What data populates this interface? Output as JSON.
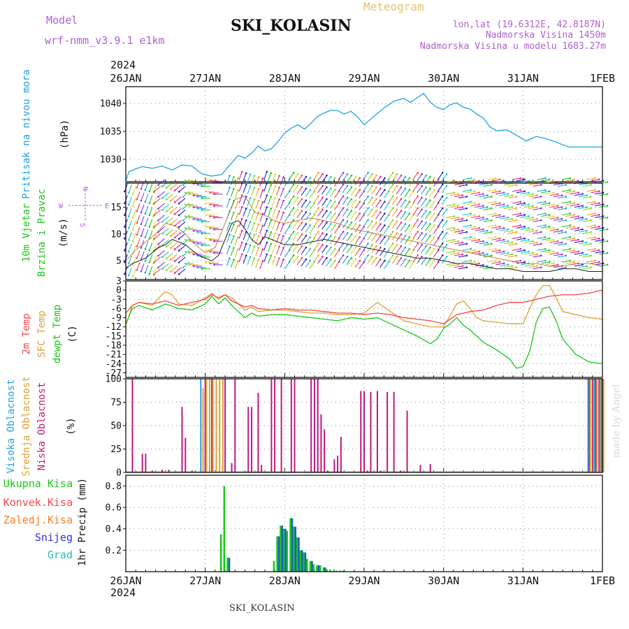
{
  "header": {
    "model_label": "Model",
    "model_name": "wrf-nmm_v3.9.1 e1km",
    "title": "SKI_KOLASIN",
    "product": "Meteogram",
    "coords": "lon,lat (19.6312E, 42.8187N)",
    "elevation": "Nadmorska Visina 1450m",
    "model_elevation": "Nadmorska Visina u modelu 1683.27m",
    "year_top": "2024",
    "year_bottom": "2024",
    "footer_title": "SKI_KOLASIN",
    "credit": "made by Angel"
  },
  "time_axis": {
    "labels": [
      "26JAN",
      "27JAN",
      "28JAN",
      "29JAN",
      "30JAN",
      "31JAN",
      "1FEB"
    ],
    "range_hours": [
      0,
      144
    ]
  },
  "colors": {
    "pressure": "#1ca3e0",
    "temp2m": "#f04848",
    "sfc": "#e0a030",
    "dewpoint": "#18c818",
    "high_cloud": "#20a0e0",
    "mid_cloud": "#e0a030",
    "low_cloud": "#c01880",
    "total_precip": "#18c818",
    "convective": "#f04848",
    "freezing": "#f08030",
    "snow": "#3030e0",
    "graupel": "#20c0c0",
    "wind_speed": "#202020",
    "wind_gust": "#c08040"
  },
  "chart_data": [
    {
      "type": "line",
      "panel": "pressure",
      "ylabel": [
        "Pritisak na nivou mora",
        "(hPa)"
      ],
      "yticks": [
        1030,
        1035,
        1040
      ],
      "ylim": [
        1026,
        1043
      ],
      "series": [
        {
          "x": [
            0,
            1,
            3,
            5,
            8,
            11,
            14,
            17,
            20,
            23,
            26,
            29,
            32,
            34,
            36,
            38,
            40,
            42,
            44,
            46,
            48,
            50,
            52,
            54,
            56,
            58,
            60,
            62,
            64,
            66,
            68,
            70,
            72,
            75,
            78,
            81,
            84,
            86,
            88,
            90,
            92,
            94,
            96,
            98,
            100,
            102,
            104,
            106,
            108,
            110,
            112,
            115,
            118,
            121,
            124,
            127,
            130,
            132,
            134,
            136,
            138,
            140,
            142,
            144
          ],
          "values": [
            1026.2,
            1027.8,
            1028.3,
            1028.7,
            1028.4,
            1028.8,
            1028.1,
            1029.0,
            1028.8,
            1027.4,
            1027.0,
            1027.3,
            1029.4,
            1030.7,
            1030.2,
            1031.1,
            1032.4,
            1031.5,
            1031.9,
            1033.2,
            1034.7,
            1035.6,
            1036.2,
            1035.4,
            1036.5,
            1037.7,
            1038.3,
            1038.8,
            1038.7,
            1038.1,
            1038.6,
            1037.6,
            1036.2,
            1037.7,
            1039.2,
            1040.4,
            1040.9,
            1040.2,
            1041.0,
            1041.8,
            1040.2,
            1039.3,
            1038.9,
            1039.8,
            1040.1,
            1039.3,
            1039.0,
            1038.1,
            1037.4,
            1035.8,
            1035.1,
            1035.3,
            1034.3,
            1033.3,
            1034.1,
            1033.7,
            1033.1,
            1032.6,
            1032.2,
            1032.2,
            1032.2,
            1032.2,
            1032.2,
            1032.2
          ]
        }
      ]
    },
    {
      "type": "line",
      "panel": "wind",
      "ylabel": [
        "10m Vjetar",
        "Brzina i Pravac",
        "(m/s)"
      ],
      "compass": [
        "N",
        "S",
        "W",
        "E"
      ],
      "yticks": [
        5,
        10,
        15
      ],
      "ylim": [
        1.5,
        19.5
      ],
      "series": [
        {
          "name": "speed",
          "x": [
            0,
            2,
            4,
            6,
            8,
            10,
            12,
            14,
            16,
            18,
            20,
            22,
            24,
            26,
            28,
            30,
            32,
            34,
            36,
            38,
            40,
            42,
            44,
            46,
            48,
            52,
            56,
            60,
            64,
            68,
            72,
            76,
            80,
            84,
            88,
            92,
            96,
            100,
            104,
            108,
            112,
            116,
            120,
            124,
            128,
            132,
            136,
            140,
            144
          ],
          "values": [
            3.5,
            4.5,
            5.0,
            5.5,
            6.5,
            7.5,
            8.0,
            9.0,
            8.5,
            8.0,
            7.0,
            6.0,
            5.5,
            5.0,
            6.0,
            9.0,
            12.0,
            12.5,
            11.0,
            9.0,
            8.0,
            9.5,
            9.0,
            8.5,
            8.0,
            8.0,
            8.5,
            9.0,
            8.5,
            8.0,
            7.5,
            7.0,
            6.5,
            6.0,
            5.5,
            5.5,
            5.0,
            4.5,
            4.5,
            4.0,
            3.5,
            3.5,
            3.0,
            3.0,
            3.0,
            3.5,
            3.5,
            3.0,
            3.0
          ]
        },
        {
          "name": "gust",
          "x": [
            0,
            3,
            6,
            9,
            12,
            15,
            18,
            21,
            24,
            27,
            30,
            33,
            36,
            39,
            42,
            45,
            48,
            52,
            56,
            60,
            64,
            68,
            72,
            76,
            80,
            84,
            88,
            92,
            96,
            100,
            104,
            108,
            112,
            116,
            120,
            124,
            128,
            132,
            136,
            140,
            144
          ],
          "values": [
            5.0,
            7.0,
            8.5,
            10.0,
            12.0,
            11.5,
            10.0,
            8.0,
            6.5,
            7.5,
            12.0,
            16.5,
            17.0,
            14.0,
            13.5,
            12.5,
            12.0,
            12.5,
            13.0,
            12.5,
            12.0,
            11.0,
            10.5,
            10.0,
            9.5,
            9.0,
            8.5,
            8.0,
            7.5,
            7.0,
            6.5,
            6.0,
            5.5,
            5.0,
            4.5,
            4.5,
            4.0,
            4.0,
            4.5,
            4.5,
            4.0
          ]
        }
      ]
    },
    {
      "type": "line",
      "panel": "temperature",
      "ylabel": [
        "2m Temp",
        "SFC Temp",
        "dewpt Temp",
        "(C)"
      ],
      "yticks": [
        3,
        0,
        -3,
        -6,
        -9,
        -12,
        -15,
        -18,
        -21,
        -24,
        -27
      ],
      "ylim": [
        -28.5,
        3
      ],
      "series": [
        {
          "name": "2m Temp",
          "x": [
            0,
            2,
            4,
            8,
            12,
            16,
            20,
            24,
            26,
            28,
            30,
            32,
            34,
            36,
            38,
            40,
            44,
            48,
            52,
            56,
            60,
            64,
            68,
            72,
            76,
            80,
            84,
            88,
            92,
            96,
            100,
            104,
            108,
            112,
            116,
            120,
            124,
            128,
            132,
            136,
            140,
            144
          ],
          "values": [
            -7.5,
            -5.0,
            -4.0,
            -4.5,
            -3.5,
            -5.0,
            -4.0,
            -3.0,
            -1.5,
            -2.5,
            -1.5,
            -3.5,
            -4.5,
            -5.5,
            -5.0,
            -6.0,
            -6.5,
            -6.0,
            -6.5,
            -6.5,
            -7.0,
            -7.5,
            -7.5,
            -8.0,
            -7.5,
            -8.0,
            -9.0,
            -9.5,
            -10.0,
            -11.0,
            -8.0,
            -7.0,
            -6.5,
            -5.0,
            -4.0,
            -4.0,
            -3.0,
            -2.0,
            -1.5,
            -1.5,
            -1.0,
            0.0
          ]
        },
        {
          "name": "SFC Temp",
          "x": [
            0,
            2,
            4,
            8,
            10,
            12,
            14,
            16,
            20,
            24,
            26,
            28,
            30,
            32,
            34,
            36,
            38,
            40,
            44,
            48,
            52,
            56,
            60,
            64,
            68,
            72,
            76,
            80,
            84,
            88,
            92,
            96,
            100,
            102,
            104,
            106,
            108,
            112,
            116,
            120,
            122,
            124,
            126,
            128,
            130,
            132,
            136,
            140,
            144
          ],
          "values": [
            -11.5,
            -5.0,
            -4.0,
            -5.0,
            -2.5,
            -0.5,
            -1.5,
            -4.5,
            -5.0,
            -2.5,
            -1.0,
            -3.0,
            -1.5,
            -2.5,
            -4.5,
            -6.5,
            -5.5,
            -7.0,
            -6.5,
            -6.5,
            -7.0,
            -7.5,
            -7.5,
            -8.0,
            -8.0,
            -7.5,
            -4.0,
            -7.0,
            -10.0,
            -11.0,
            -12.0,
            -12.0,
            -4.5,
            -3.5,
            -6.0,
            -9.0,
            -10.0,
            -10.5,
            -11.0,
            -11.0,
            -6.0,
            -1.5,
            1.5,
            1.5,
            -2.5,
            -7.0,
            -8.0,
            -9.0,
            -9.5
          ]
        },
        {
          "name": "dewpt Temp",
          "x": [
            0,
            2,
            4,
            8,
            12,
            16,
            20,
            24,
            26,
            28,
            30,
            32,
            34,
            36,
            38,
            40,
            44,
            48,
            52,
            56,
            60,
            64,
            68,
            72,
            76,
            80,
            84,
            88,
            92,
            94,
            96,
            98,
            100,
            102,
            104,
            106,
            108,
            112,
            116,
            118,
            120,
            122,
            124,
            126,
            128,
            130,
            132,
            136,
            140,
            144
          ],
          "values": [
            -11.0,
            -6.0,
            -5.0,
            -6.5,
            -4.5,
            -6.0,
            -6.5,
            -4.5,
            -2.0,
            -4.5,
            -2.5,
            -5.0,
            -7.0,
            -9.0,
            -7.5,
            -8.5,
            -8.0,
            -8.0,
            -8.5,
            -9.0,
            -9.5,
            -10.0,
            -9.0,
            -9.5,
            -9.0,
            -11.0,
            -13.0,
            -15.0,
            -17.5,
            -16.0,
            -12.5,
            -11.0,
            -9.0,
            -11.5,
            -13.0,
            -15.0,
            -17.0,
            -19.5,
            -22.5,
            -25.5,
            -25.0,
            -20.0,
            -10.5,
            -6.0,
            -5.5,
            -10.0,
            -16.0,
            -21.0,
            -23.5,
            -24.0
          ]
        }
      ]
    },
    {
      "type": "bar",
      "panel": "clouds",
      "ylabel": [
        "Visoka Oblacnost",
        "Srednja Oblacnost",
        "Niska Oblacnost",
        "(%)"
      ],
      "yticks": [
        0,
        25,
        50,
        75,
        100
      ],
      "ylim": [
        0,
        100
      ],
      "series": [
        {
          "name": "Niska Oblacnost",
          "x": [
            2,
            5,
            6,
            8,
            11,
            13,
            17,
            18,
            20,
            24,
            26,
            30,
            32,
            33,
            37,
            38,
            40,
            41,
            44,
            45,
            47,
            50,
            51,
            56,
            57,
            58,
            59,
            60,
            61,
            63,
            64,
            65,
            67,
            68,
            71,
            72,
            73,
            74,
            76,
            77,
            79,
            81,
            83,
            85,
            89,
            92,
            140,
            141,
            142,
            143,
            144
          ],
          "values": [
            100,
            20,
            20,
            2,
            3,
            3,
            70,
            37,
            2,
            100,
            100,
            100,
            10,
            100,
            70,
            70,
            85,
            8,
            100,
            100,
            100,
            100,
            100,
            100,
            100,
            100,
            62,
            46,
            2,
            14,
            18,
            38,
            0,
            0,
            87,
            87,
            2,
            86,
            87,
            2,
            86,
            86,
            2,
            66,
            8,
            9,
            100,
            100,
            100,
            100,
            100
          ]
        },
        {
          "name": "Srednja Oblacnost",
          "x": [
            23,
            24,
            25,
            26,
            27,
            28,
            29,
            140,
            141,
            142,
            143,
            144
          ],
          "values": [
            90,
            100,
            100,
            100,
            100,
            100,
            100,
            100,
            100,
            100,
            100,
            100
          ]
        },
        {
          "name": "Visoka Oblacnost",
          "x": [
            23,
            140,
            142,
            144
          ],
          "values": [
            100,
            100,
            100,
            100
          ]
        }
      ]
    },
    {
      "type": "bar",
      "panel": "precipitation",
      "ylabel": [
        "1hr Precip (mm)"
      ],
      "legend": [
        "Ukupna Kisa",
        "Konvek.Kisa",
        "Zaledj.Kisa",
        "Snijeg",
        "Grad"
      ],
      "yticks": [
        0.2,
        0.4,
        0.6,
        0.8
      ],
      "ylim": [
        0,
        0.9
      ],
      "series": [
        {
          "name": "Ukupna Kisa",
          "x": [
            29,
            30,
            31,
            45,
            46,
            47,
            48,
            49,
            50,
            51,
            52,
            53,
            54,
            55,
            56,
            57,
            58,
            59,
            60,
            61,
            62,
            63,
            64,
            65,
            66
          ],
          "values": [
            0.35,
            0.8,
            0.13,
            0.1,
            0.33,
            0.43,
            0.4,
            0.38,
            0.5,
            0.42,
            0.32,
            0.2,
            0.18,
            0.12,
            0.1,
            0.07,
            0.06,
            0.06,
            0.04,
            0.02,
            0.02,
            0.01,
            0.01,
            0.01,
            0.01
          ]
        },
        {
          "name": "Snijeg",
          "x": [
            31,
            46,
            47,
            48,
            50,
            51,
            52,
            53,
            54,
            56,
            58,
            60
          ],
          "values": [
            0.13,
            0.33,
            0.43,
            0.4,
            0.5,
            0.42,
            0.32,
            0.2,
            0.18,
            0.1,
            0.06,
            0.04
          ]
        }
      ]
    }
  ]
}
